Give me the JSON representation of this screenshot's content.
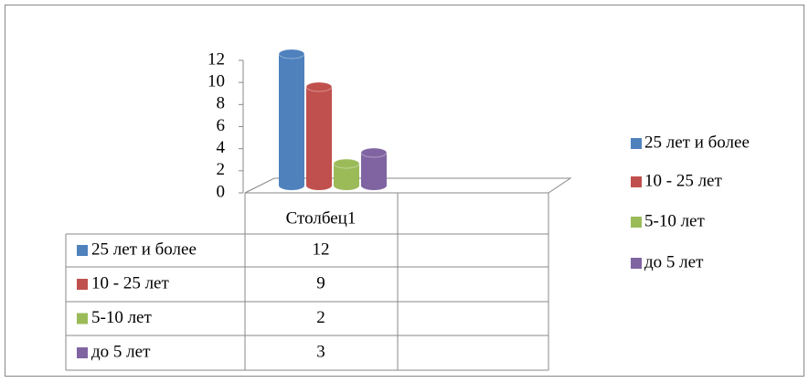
{
  "chart_data": {
    "type": "bar3d",
    "categories": [
      "Столбец1"
    ],
    "series": [
      {
        "name": "25 лет и более",
        "color": "#4f81bd",
        "values": [
          12
        ]
      },
      {
        "name": "10 - 25 лет",
        "color": "#c0504d",
        "values": [
          9
        ]
      },
      {
        "name": "5-10 лет",
        "color": "#9bbb59",
        "values": [
          2
        ]
      },
      {
        "name": "до 5 лет",
        "color": "#8064a2",
        "values": [
          3
        ]
      }
    ],
    "ylim": [
      0,
      12
    ],
    "yticks": [
      0,
      2,
      4,
      6,
      8,
      10,
      12
    ],
    "legend": "right",
    "data_table": true
  }
}
